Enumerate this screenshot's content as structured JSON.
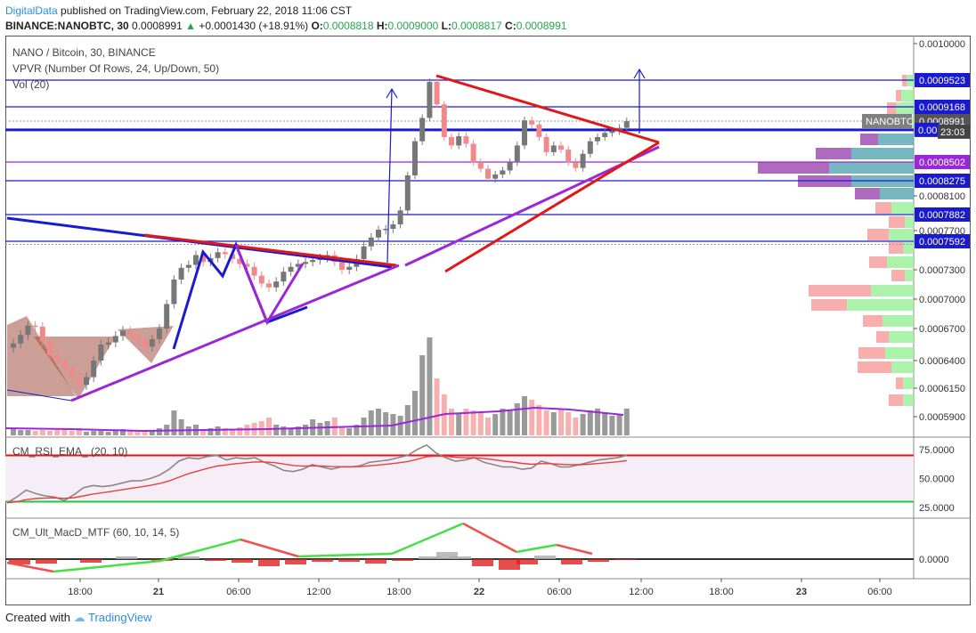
{
  "header": {
    "publisher": "DigitalData",
    "published_text": "published on TradingView.com, February 22, 2018 11:06 CST",
    "symbol": "BINANCE:NANOBTC, 30",
    "last": "0.0008991",
    "change": "+0.0001430 (+18.91%)",
    "o_label": "O:",
    "o_value": "0.0008818",
    "h_label": "H:",
    "h_value": "0.0009000",
    "l_label": "L:",
    "l_value": "0.0008817",
    "c_label": "C:",
    "c_value": "0.0008991"
  },
  "legend": {
    "title": "NANO / Bitcoin, 30, BINANCE",
    "vpvr": "VPVR (Number Of Rows, 24, Up/Down, 50)",
    "vol": "Vol (20)",
    "rsi": "CM_RSI_EMA_ (20, 10)",
    "macd": "CM_Ult_MacD_MTF (60, 10, 14, 5)"
  },
  "footer": {
    "created_with": "Created with",
    "brand": "TradingView"
  },
  "colors": {
    "up": "#777777",
    "down": "#f08a8a",
    "blue": "#1a1ad0",
    "red": "#e01818",
    "purple": "#9a28d8",
    "green": "#22c840"
  },
  "chart_data": [
    {
      "type": "candlestick",
      "title": "NANO / Bitcoin, 30, BINANCE",
      "y_axis_ticks": [
        "0.0010000",
        "0.0009523",
        "0.0009168",
        "0.0008991",
        "0.0008502",
        "0.0008275",
        "0.0008100",
        "0.0007882",
        "0.0007700",
        "0.0007592",
        "0.0007300",
        "0.0007000",
        "0.0006700",
        "0.0006400",
        "0.0006150",
        "0.0005900"
      ],
      "x_axis_ticks": [
        "18:00",
        "21",
        "06:00",
        "12:00",
        "18:00",
        "22",
        "06:00",
        "12:00",
        "18:00",
        "23",
        "06:00"
      ],
      "current_price": "0.0008991",
      "price_tag_label": "NANOBTC",
      "blue_level_tag": "0.00",
      "countdown": "23:03",
      "horizontal_levels": [
        0.0009523,
        0.0009168,
        0.0008886,
        0.0008502,
        0.0008275,
        0.0007882,
        0.0007592
      ],
      "price_close_series": [
        0.000656,
        0.000664,
        0.000673,
        0.000672,
        0.000658,
        0.000645,
        0.00064,
        0.000633,
        0.000625,
        0.000618,
        0.000625,
        0.00064,
        0.000655,
        0.000657,
        0.000663,
        0.000668,
        0.000664,
        0.000659,
        0.000653,
        0.00066,
        0.00067,
        0.000695,
        0.00072,
        0.000732,
        0.000735,
        0.000745,
        0.000738,
        0.000742,
        0.000748,
        0.000746,
        0.000741,
        0.000736,
        0.000733,
        0.000724,
        0.000716,
        0.000712,
        0.000718,
        0.000728,
        0.000733,
        0.000736,
        0.000738,
        0.00074,
        0.000742,
        0.000745,
        0.000738,
        0.00073,
        0.000733,
        0.000741,
        0.000754,
        0.000763,
        0.000771,
        0.000772,
        0.000777,
        0.000793,
        0.000834,
        0.000875,
        0.000903,
        0.00095,
        0.00092,
        0.00088,
        0.00087,
        0.000881,
        0.000872,
        0.00085,
        0.000842,
        0.00083,
        0.000835,
        0.00084,
        0.00085,
        0.00087,
        0.0009,
        0.000895,
        0.00088,
        0.000862,
        0.00087,
        0.000865,
        0.00085,
        0.000843,
        0.00086,
        0.000875,
        0.00088,
        0.000885,
        0.000887,
        0.000891,
        0.000899
      ]
    },
    {
      "type": "line",
      "title": "CM_RSI_EMA_ (20, 10)",
      "y_axis_ticks": [
        "75.0000",
        "50.0000",
        "25.0000"
      ],
      "levels": [
        70,
        30
      ],
      "rsi_series": [
        29,
        34,
        40,
        37,
        35,
        34,
        31,
        36,
        42,
        44,
        43,
        44,
        46,
        48,
        48,
        50,
        53,
        58,
        65,
        68,
        67,
        69,
        70,
        66,
        68,
        67,
        68,
        64,
        61,
        57,
        56,
        58,
        62,
        60,
        58,
        60,
        60,
        61,
        64,
        65,
        66,
        68,
        70,
        75,
        79,
        72,
        68,
        65,
        66,
        68,
        64,
        62,
        60,
        60,
        58,
        59,
        65,
        63,
        60,
        60,
        62,
        64,
        66,
        67,
        68,
        70
      ]
    },
    {
      "type": "histogram",
      "title": "CM_Ult_MacD_MTF (60, 10, 14, 5)",
      "y_axis_ticks": [
        "0.0000"
      ]
    }
  ]
}
